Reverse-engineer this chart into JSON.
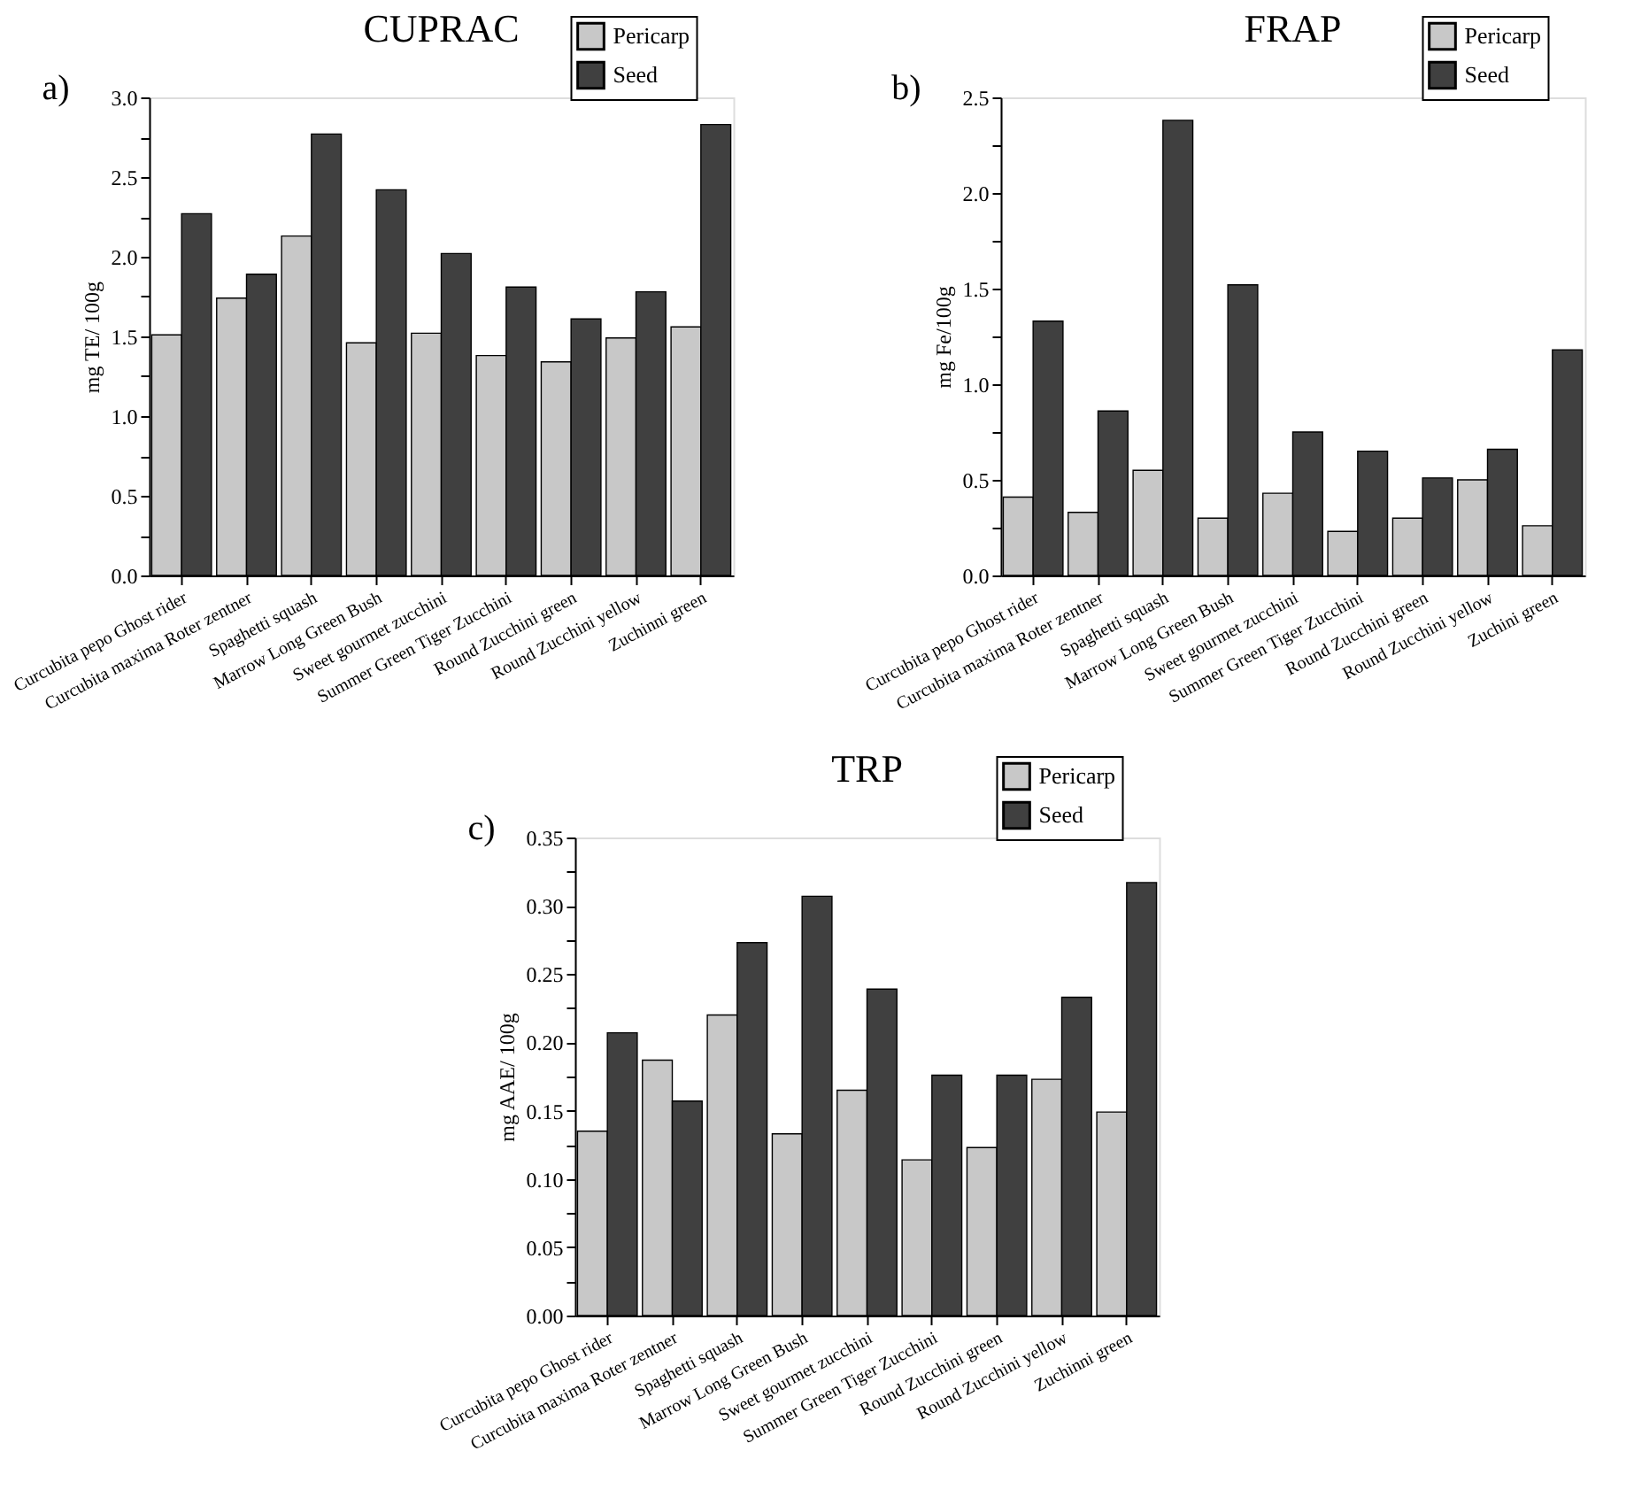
{
  "chart_data": [
    {
      "type": "bar",
      "title": "CUPRAC",
      "ylabel": "mg TE/ 100g",
      "annotations": [
        "a)"
      ],
      "legend": "top right",
      "grid": false,
      "categories": [
        "Curcubita pepo Ghost rider",
        "Curcubita maxima Roter zentner",
        "Spaghetti squash",
        "Marrow Long Green Bush",
        "Sweet gourmet zucchini",
        "Summer Green Tiger Zucchini",
        "Round Zucchini green",
        "Round Zucchini yellow",
        "Zuchinni green"
      ],
      "series": [
        {
          "name": "Pericarp",
          "color": "#c8c8c8",
          "values": [
            1.51,
            1.74,
            2.13,
            1.46,
            1.52,
            1.38,
            1.34,
            1.49,
            1.56
          ]
        },
        {
          "name": "Seed",
          "color": "#404040",
          "values": [
            2.27,
            1.89,
            2.77,
            2.42,
            2.02,
            1.81,
            1.61,
            1.78,
            2.83
          ]
        }
      ],
      "ylim": [
        0,
        3.0
      ],
      "yticks": [
        {
          "value": 0,
          "label": "0.0"
        },
        {
          "value": 0.25,
          "label": null
        },
        {
          "value": 0.5,
          "label": "0.5"
        },
        {
          "value": 0.75,
          "label": null
        },
        {
          "value": 1,
          "label": "1.0"
        },
        {
          "value": 1.25,
          "label": null
        },
        {
          "value": 1.5,
          "label": "1.5"
        },
        {
          "value": 1.75,
          "label": null
        },
        {
          "value": 2,
          "label": "2.0"
        },
        {
          "value": 2.25,
          "label": null
        },
        {
          "value": 2.5,
          "label": "2.5"
        },
        {
          "value": 2.75,
          "label": null
        },
        {
          "value": 3,
          "label": "3.0"
        }
      ]
    },
    {
      "type": "bar",
      "title": "FRAP",
      "ylabel": "mg Fe/100g",
      "annotations": [
        "b)"
      ],
      "legend": "top right",
      "grid": false,
      "categories": [
        "Curcubita pepo Ghost rider",
        "Curcubita maxima Roter zentner",
        "Spaghetti squash",
        "Marrow Long Green Bush",
        "Sweet gourmet zucchini",
        "Summer Green Tiger Zucchini",
        "Round Zucchini green",
        "Round Zucchini yellow",
        "Zuchini green"
      ],
      "series": [
        {
          "name": "Pericarp",
          "color": "#c8c8c8",
          "values": [
            0.41,
            0.33,
            0.55,
            0.3,
            0.43,
            0.23,
            0.3,
            0.5,
            0.26
          ]
        },
        {
          "name": "Seed",
          "color": "#404040",
          "values": [
            1.33,
            0.86,
            2.38,
            1.52,
            0.75,
            0.65,
            0.51,
            0.66,
            1.18
          ]
        }
      ],
      "ylim": [
        0,
        2.5
      ],
      "yticks": [
        {
          "value": 0,
          "label": "0.0"
        },
        {
          "value": 0.25,
          "label": null
        },
        {
          "value": 0.5,
          "label": "0.5"
        },
        {
          "value": 0.75,
          "label": null
        },
        {
          "value": 1,
          "label": "1.0"
        },
        {
          "value": 1.25,
          "label": null
        },
        {
          "value": 1.5,
          "label": "1.5"
        },
        {
          "value": 1.75,
          "label": null
        },
        {
          "value": 2,
          "label": "2.0"
        },
        {
          "value": 2.25,
          "label": null
        },
        {
          "value": 2.5,
          "label": "2.5"
        }
      ]
    },
    {
      "type": "bar",
      "title": "TRP",
      "ylabel": "mg AAE/ 100g",
      "annotations": [
        "c)"
      ],
      "legend": "top right",
      "grid": false,
      "categories": [
        "Curcubita pepo Ghost rider",
        "Curcubita maxima Roter zentner",
        "Spaghetti squash",
        "Marrow Long Green Bush",
        "Sweet gourmet zucchini",
        "Summer Green Tiger Zucchini",
        "Round Zucchini green",
        "Round Zucchini yellow",
        "Zuchinni green"
      ],
      "series": [
        {
          "name": "Pericarp",
          "color": "#c8c8c8",
          "values": [
            0.135,
            0.187,
            0.22,
            0.133,
            0.165,
            0.114,
            0.123,
            0.173,
            0.149
          ]
        },
        {
          "name": "Seed",
          "color": "#404040",
          "values": [
            0.207,
            0.157,
            0.273,
            0.307,
            0.239,
            0.176,
            0.176,
            0.233,
            0.317
          ]
        }
      ],
      "ylim": [
        0,
        0.35
      ],
      "yticks": [
        {
          "value": 0,
          "label": "0.00"
        },
        {
          "value": 0.025,
          "label": null
        },
        {
          "value": 0.05,
          "label": "0.05"
        },
        {
          "value": 0.075,
          "label": null
        },
        {
          "value": 0.1,
          "label": "0.10"
        },
        {
          "value": 0.125,
          "label": null
        },
        {
          "value": 0.15,
          "label": "0.15"
        },
        {
          "value": 0.175,
          "label": null
        },
        {
          "value": 0.2,
          "label": "0.20"
        },
        {
          "value": 0.225,
          "label": null
        },
        {
          "value": 0.25,
          "label": "0.25"
        },
        {
          "value": 0.275,
          "label": null
        },
        {
          "value": 0.3,
          "label": "0.30"
        },
        {
          "value": 0.325,
          "label": null
        },
        {
          "value": 0.35,
          "label": "0.35"
        }
      ]
    }
  ]
}
